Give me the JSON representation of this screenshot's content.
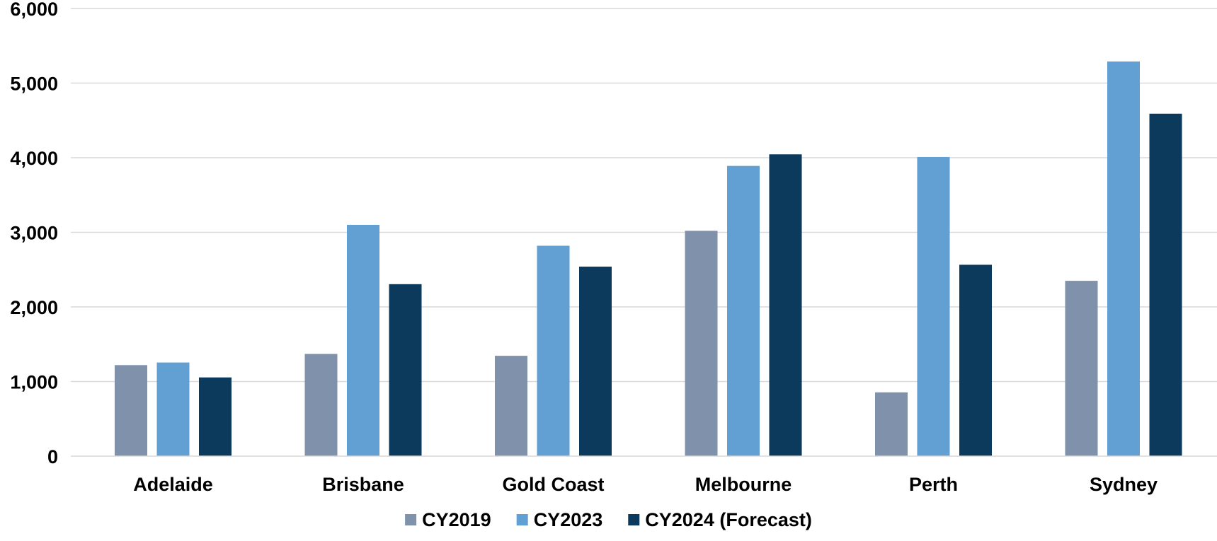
{
  "chart_data": {
    "type": "bar",
    "title": "",
    "xlabel": "",
    "ylabel": "",
    "ylim": [
      0,
      6000
    ],
    "y_ticks": [
      0,
      1000,
      2000,
      3000,
      4000,
      5000,
      6000
    ],
    "y_tick_labels": [
      "0",
      "1,000",
      "2,000",
      "3,000",
      "4,000",
      "5,000",
      "6,000"
    ],
    "grid": true,
    "legend_position": "bottom",
    "categories": [
      "Adelaide",
      "Brisbane",
      "Gold Coast",
      "Melbourne",
      "Perth",
      "Sydney"
    ],
    "series": [
      {
        "name": "CY2019",
        "color": "#8091ab",
        "values": [
          1220,
          1370,
          1345,
          3020,
          855,
          2350
        ]
      },
      {
        "name": "CY2023",
        "color": "#629fd2",
        "values": [
          1255,
          3100,
          2820,
          3890,
          4010,
          5290
        ]
      },
      {
        "name": "CY2024 (Forecast)",
        "color": "#0c3a5d",
        "values": [
          1055,
          2305,
          2540,
          4045,
          2565,
          4590
        ]
      }
    ]
  }
}
